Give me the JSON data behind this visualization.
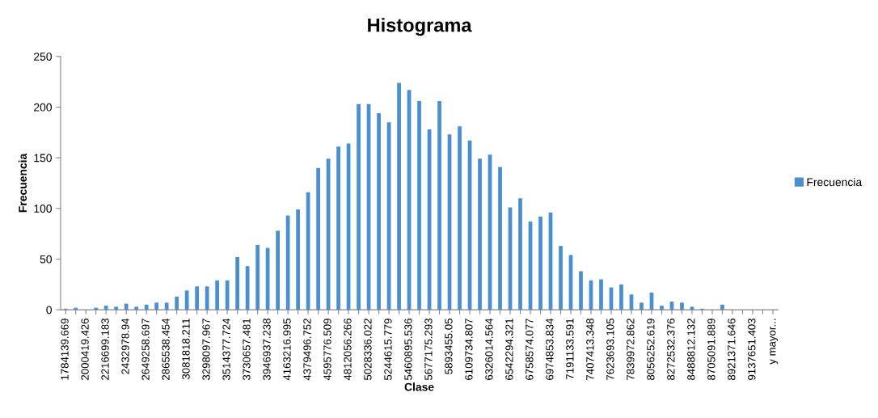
{
  "chart_data": {
    "type": "bar",
    "title": "Histograma",
    "xlabel": "Clase",
    "ylabel": "Frecuencia",
    "categories": [
      "1784139.669",
      null,
      "2000419.426",
      null,
      "2216699.183",
      null,
      "2432978.94",
      null,
      "2649258.697",
      null,
      "2865538.454",
      null,
      "3081818.211",
      null,
      "3298097.967",
      null,
      "3514377.724",
      null,
      "3730657.481",
      null,
      "3946937.238",
      null,
      "4163216.995",
      null,
      "4379496.752",
      null,
      "4595776.509",
      null,
      "4812056.266",
      null,
      "5028336.022",
      null,
      "5244615.779",
      null,
      "5460895.536",
      null,
      "5677175.293",
      null,
      "5893455.05",
      null,
      "6109734.807",
      null,
      "6326014.564",
      null,
      "6542294.321",
      null,
      "6758574.077",
      null,
      "6974853.834",
      null,
      "7191133.591",
      null,
      "7407413.348",
      null,
      "7623693.105",
      null,
      "7839972.862",
      null,
      "8056252.619",
      null,
      "8272532.376",
      null,
      "8488812.132",
      null,
      "8705091.889",
      null,
      "8921371.646",
      null,
      "9137651.403",
      null,
      "y mayor..."
    ],
    "series": [
      {
        "name": "Frecuencia",
        "color": "#4a8fd0",
        "values": [
          1,
          2,
          0,
          2,
          4,
          3,
          6,
          3,
          5,
          7,
          7,
          13,
          19,
          23,
          23,
          29,
          29,
          52,
          43,
          64,
          61,
          78,
          93,
          99,
          116,
          140,
          149,
          161,
          164,
          203,
          203,
          194,
          185,
          224,
          217,
          206,
          178,
          206,
          173,
          181,
          167,
          149,
          153,
          141,
          101,
          110,
          87,
          92,
          96,
          63,
          54,
          38,
          29,
          30,
          22,
          25,
          15,
          7,
          17,
          4,
          8,
          7,
          3,
          1,
          0,
          5,
          0,
          0,
          0,
          0,
          0
        ]
      }
    ],
    "ylim": [
      0,
      250
    ],
    "yticks": [
      0,
      50,
      100,
      150,
      200,
      250
    ],
    "grid": false,
    "legend": "right"
  }
}
